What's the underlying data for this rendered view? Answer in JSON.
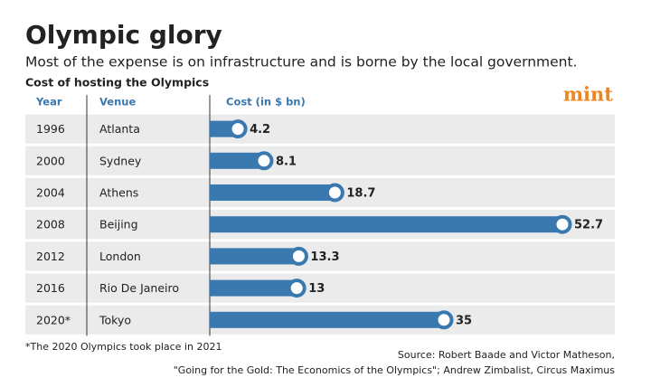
{
  "chart_data": {
    "type": "hbar",
    "title": "Olympic glory",
    "subtitle": "Most of the expense is on infrastructure and is borne by the local government.",
    "chart_label": "Cost of hosting the Olympics",
    "column_headers": [
      "Year",
      "Venue",
      "Cost (in $ bn)"
    ],
    "logo": "mint",
    "years": [
      "1996",
      "2000",
      "2004",
      "2008",
      "2012",
      "2016",
      "2020*"
    ],
    "categories": [
      "Atlanta",
      "Sydney",
      "Athens",
      "Beijing",
      "London",
      "Rio De Janeiro",
      "Tokyo"
    ],
    "values": [
      4.2,
      8.1,
      18.7,
      52.7,
      13.3,
      13,
      35
    ],
    "color": "#3a79b0",
    "footnote": "*The 2020 Olympics took place in 2021",
    "source": [
      "Source: Robert Baade and Victor Matheson,",
      "\"Going for the Gold: The Economics of the Olympics\"; Andrew Zimbalist, Circus Maximus"
    ]
  }
}
